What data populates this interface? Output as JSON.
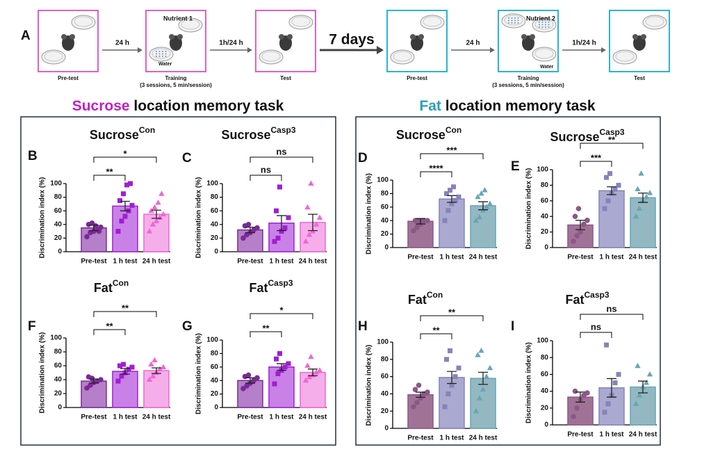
{
  "schematic": {
    "label": "A",
    "steps": [
      {
        "caption": "Pre-test",
        "color": "#e35fc4"
      },
      {
        "caption": "Training",
        "sub": "(3 sessions, 5 min/session)",
        "nutrient": "Nutrient 1",
        "water": "Water",
        "color": "#e35fc4"
      },
      {
        "caption": "Test",
        "color": "#e35fc4"
      },
      {
        "caption": "Pre-test",
        "color": "#2bb3d3"
      },
      {
        "caption": "Training",
        "sub": "(3 sessions, 5 min/session)",
        "nutrient": "Nutrient 2",
        "water": "Water",
        "color": "#2bb3d3"
      },
      {
        "caption": "Test",
        "color": "#2bb3d3"
      }
    ],
    "arrows": [
      "24 h",
      "1h/24 h",
      "7 days",
      "24 h",
      "1h/24 h"
    ]
  },
  "sections": [
    {
      "accent": "Sucrose",
      "text": " location memory task",
      "color": "#c21fc6"
    },
    {
      "accent": "Fat",
      "text": " location memory task",
      "color": "#2a9fb8"
    }
  ],
  "chart_data": [
    {
      "type": "bar",
      "letter": "B",
      "title": "Sucrose",
      "title_sup": "Con",
      "ylabel": "Discrimination index (%)",
      "categories": [
        "Pre-test",
        "1 h test",
        "24 h test"
      ],
      "values": [
        35,
        67,
        55
      ],
      "errors": [
        4,
        7,
        6
      ],
      "points": [
        [
          22,
          28,
          30,
          33,
          36,
          40,
          42,
          38,
          30
        ],
        [
          30,
          45,
          52,
          60,
          68,
          75,
          85,
          98,
          100
        ],
        [
          30,
          40,
          45,
          50,
          55,
          60,
          65,
          72,
          85
        ]
      ],
      "colors": [
        "#b67fc9",
        "#c981e8",
        "#f6aeea"
      ],
      "point_colors": [
        "#7a2a96",
        "#a11ed2",
        "#ef66d6"
      ],
      "markers": [
        "circle",
        "square",
        "triangle"
      ],
      "significance": [
        {
          "from": 0,
          "to": 1,
          "label": "**"
        },
        {
          "from": 0,
          "to": 2,
          "label": "*"
        }
      ],
      "ylim": [
        0,
        100
      ],
      "yticks": [
        0,
        20,
        40,
        60,
        80,
        100
      ]
    },
    {
      "type": "bar",
      "letter": "C",
      "title": "Sucrose",
      "title_sup": "Casp3",
      "ylabel": "Discrimination index (%)",
      "categories": [
        "Pre-test",
        "1 h test",
        "24 h test"
      ],
      "values": [
        32,
        42,
        43
      ],
      "errors": [
        4,
        11,
        12
      ],
      "points": [
        [
          20,
          25,
          28,
          32,
          35,
          38,
          40
        ],
        [
          15,
          20,
          30,
          35,
          50,
          60,
          95
        ],
        [
          15,
          25,
          30,
          40,
          50,
          65,
          100
        ]
      ],
      "colors": [
        "#b67fc9",
        "#c981e8",
        "#f6aeea"
      ],
      "point_colors": [
        "#7a2a96",
        "#a11ed2",
        "#ef66d6"
      ],
      "markers": [
        "circle",
        "square",
        "triangle"
      ],
      "significance": [
        {
          "from": 0,
          "to": 1,
          "label": "ns"
        },
        {
          "from": 0,
          "to": 2,
          "label": "ns"
        }
      ],
      "ylim": [
        0,
        100
      ],
      "yticks": [
        0,
        20,
        40,
        60,
        80,
        100
      ]
    },
    {
      "type": "bar",
      "letter": "F",
      "title": "Fat",
      "title_sup": "Con",
      "ylabel": "Discrimination index (%)",
      "categories": [
        "Pre-test",
        "1 h test",
        "24 h test"
      ],
      "values": [
        38,
        52,
        53
      ],
      "errors": [
        3,
        4,
        4
      ],
      "points": [
        [
          28,
          32,
          36,
          38,
          40,
          44,
          42
        ],
        [
          38,
          45,
          50,
          55,
          58,
          60,
          62
        ],
        [
          40,
          45,
          50,
          55,
          58,
          62,
          68
        ]
      ],
      "colors": [
        "#b67fc9",
        "#c981e8",
        "#f6aeea"
      ],
      "point_colors": [
        "#7a2a96",
        "#a11ed2",
        "#ef66d6"
      ],
      "markers": [
        "circle",
        "square",
        "triangle"
      ],
      "significance": [
        {
          "from": 0,
          "to": 1,
          "label": "**"
        },
        {
          "from": 0,
          "to": 2,
          "label": "**"
        }
      ],
      "ylim": [
        0,
        100
      ],
      "yticks": [
        0,
        20,
        40,
        60,
        80,
        100
      ]
    },
    {
      "type": "bar",
      "letter": "G",
      "title": "Fat",
      "title_sup": "Casp3",
      "ylabel": "Discrimination index (%)",
      "categories": [
        "Pre-test",
        "1 h test",
        "24 h test"
      ],
      "values": [
        40,
        60,
        52
      ],
      "errors": [
        4,
        5,
        5
      ],
      "points": [
        [
          28,
          32,
          36,
          40,
          44,
          46,
          48
        ],
        [
          35,
          50,
          55,
          60,
          65,
          72,
          80
        ],
        [
          40,
          45,
          48,
          52,
          55,
          62,
          75
        ]
      ],
      "colors": [
        "#b67fc9",
        "#c981e8",
        "#f6aeea"
      ],
      "point_colors": [
        "#7a2a96",
        "#a11ed2",
        "#ef66d6"
      ],
      "markers": [
        "circle",
        "square",
        "triangle"
      ],
      "significance": [
        {
          "from": 0,
          "to": 1,
          "label": "**"
        },
        {
          "from": 0,
          "to": 2,
          "label": "*"
        }
      ],
      "ylim": [
        0,
        100
      ],
      "yticks": [
        0,
        20,
        40,
        60,
        80,
        100
      ]
    },
    {
      "type": "bar",
      "letter": "D",
      "title": "Sucrose",
      "title_sup": "Con",
      "ylabel": "Discrimination index (%)",
      "categories": [
        "Pre-test",
        "1 h test",
        "24 h test"
      ],
      "values": [
        39,
        72,
        62
      ],
      "errors": [
        4,
        5,
        6
      ],
      "points": [
        [
          25,
          30,
          35,
          40,
          40,
          40,
          40,
          40
        ],
        [
          40,
          55,
          65,
          70,
          75,
          80,
          85,
          90
        ],
        [
          40,
          45,
          55,
          60,
          65,
          75,
          80,
          85
        ]
      ],
      "colors": [
        "#a07396",
        "#aaa9cf",
        "#93b8c2"
      ],
      "point_colors": [
        "#8c5787",
        "#8583bd",
        "#67a6b6"
      ],
      "markers": [
        "circle",
        "square",
        "triangle"
      ],
      "significance": [
        {
          "from": 0,
          "to": 1,
          "label": "****"
        },
        {
          "from": 0,
          "to": 2,
          "label": "***"
        }
      ],
      "ylim": [
        0,
        100
      ],
      "yticks": [
        0,
        20,
        40,
        60,
        80,
        100
      ]
    },
    {
      "type": "bar",
      "letter": "E",
      "title": "Sucrose",
      "title_sup": "Casp3",
      "ylabel": "Discrimination index (%)",
      "categories": [
        "Pre-test",
        "1 h test",
        "24 h test"
      ],
      "values": [
        29,
        73,
        64
      ],
      "errors": [
        6,
        5,
        6
      ],
      "points": [
        [
          8,
          15,
          20,
          30,
          35,
          40,
          50
        ],
        [
          50,
          60,
          70,
          75,
          80,
          90,
          95
        ],
        [
          40,
          50,
          60,
          65,
          70,
          75,
          95
        ]
      ],
      "colors": [
        "#a07396",
        "#aaa9cf",
        "#93b8c2"
      ],
      "point_colors": [
        "#8c5787",
        "#8583bd",
        "#67a6b6"
      ],
      "markers": [
        "circle",
        "square",
        "triangle"
      ],
      "significance": [
        {
          "from": 0,
          "to": 1,
          "label": "***"
        },
        {
          "from": 0,
          "to": 2,
          "label": "**"
        }
      ],
      "ylim": [
        0,
        100
      ],
      "yticks": [
        0,
        20,
        40,
        60,
        80,
        100
      ]
    },
    {
      "type": "bar",
      "letter": "H",
      "title": "Fat",
      "title_sup": "Con",
      "ylabel": "Discrimination index (%)",
      "categories": [
        "Pre-test",
        "1 h test",
        "24 h test"
      ],
      "values": [
        39,
        59,
        58
      ],
      "errors": [
        3,
        7,
        7
      ],
      "points": [
        [
          25,
          30,
          35,
          40,
          42,
          45,
          50
        ],
        [
          25,
          40,
          50,
          60,
          70,
          80,
          90
        ],
        [
          20,
          35,
          45,
          60,
          70,
          85,
          90
        ]
      ],
      "colors": [
        "#a07396",
        "#aaa9cf",
        "#93b8c2"
      ],
      "point_colors": [
        "#8c5787",
        "#8583bd",
        "#67a6b6"
      ],
      "markers": [
        "circle",
        "square",
        "triangle"
      ],
      "significance": [
        {
          "from": 0,
          "to": 1,
          "label": "**"
        },
        {
          "from": 0,
          "to": 2,
          "label": "**"
        }
      ],
      "ylim": [
        0,
        100
      ],
      "yticks": [
        0,
        20,
        40,
        60,
        80,
        100
      ]
    },
    {
      "type": "bar",
      "letter": "I",
      "title": "Fat",
      "title_sup": "Casp3",
      "ylabel": "Discrimination index (%)",
      "categories": [
        "Pre-test",
        "1 h test",
        "24 h test"
      ],
      "values": [
        33,
        44,
        45
      ],
      "errors": [
        6,
        11,
        7
      ],
      "points": [
        [
          10,
          20,
          30,
          35,
          38,
          40
        ],
        [
          15,
          25,
          35,
          50,
          60,
          95
        ],
        [
          25,
          35,
          45,
          50,
          60,
          70
        ]
      ],
      "colors": [
        "#a07396",
        "#aaa9cf",
        "#93b8c2"
      ],
      "point_colors": [
        "#8c5787",
        "#8583bd",
        "#67a6b6"
      ],
      "markers": [
        "circle",
        "square",
        "triangle"
      ],
      "significance": [
        {
          "from": 0,
          "to": 1,
          "label": "ns"
        },
        {
          "from": 0,
          "to": 2,
          "label": "ns"
        }
      ],
      "ylim": [
        0,
        100
      ],
      "yticks": [
        0,
        20,
        40,
        60,
        80,
        100
      ]
    }
  ]
}
